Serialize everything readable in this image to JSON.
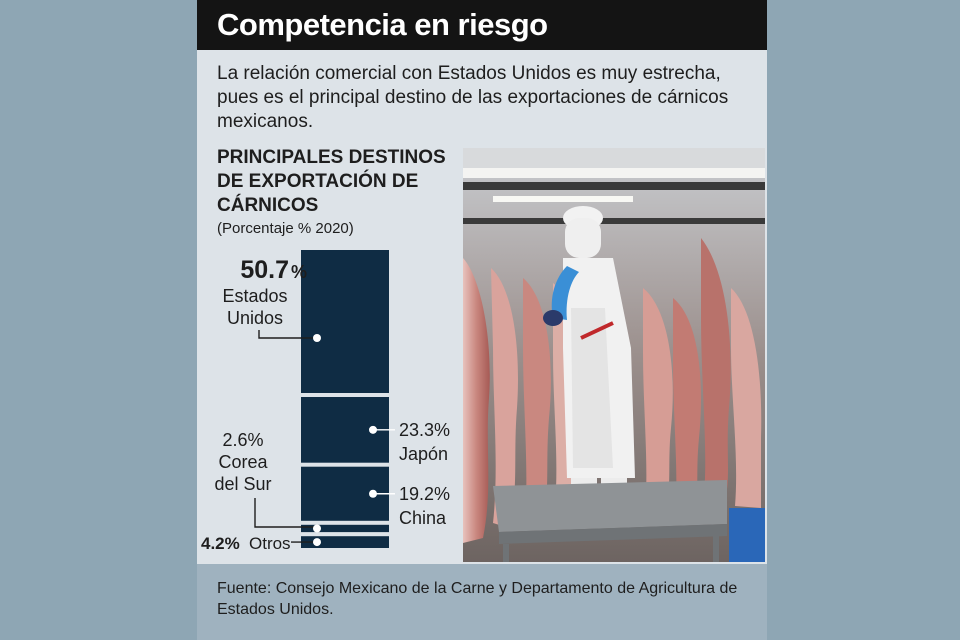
{
  "header": {
    "title": "Competencia en riesgo"
  },
  "intro": "La relación comercial con Estados Unidos es muy estrecha, pues es el principal destino de las exportaciones de cárnicos mexicanos.",
  "chart_data": {
    "type": "bar",
    "stacked": true,
    "title": "PRINCIPALES DESTINOS DE EXPORTACIÓN DE CÁRNICOS",
    "subtitle": "(Porcentaje % 2020)",
    "unit": "%",
    "categories": [
      "Estados Unidos",
      "Japón",
      "China",
      "Corea del Sur",
      "Otros"
    ],
    "values": [
      50.7,
      23.3,
      19.2,
      2.6,
      4.2
    ],
    "labels": [
      {
        "value": "50.7",
        "unit": "%",
        "lines": [
          "Estados",
          "Unidos"
        ]
      },
      {
        "value": "23.3%",
        "name": "Japón"
      },
      {
        "value": "19.2%",
        "name": "China"
      },
      {
        "value": "2.6%",
        "lines": [
          "Corea",
          "del Sur"
        ]
      },
      {
        "value": "4.2%",
        "name": "Otros"
      }
    ],
    "bar_color": "#0f2c44"
  },
  "source": "Fuente: Consejo Mexicano de la Carne y Departamento de Agricultura de Estados Unidos."
}
